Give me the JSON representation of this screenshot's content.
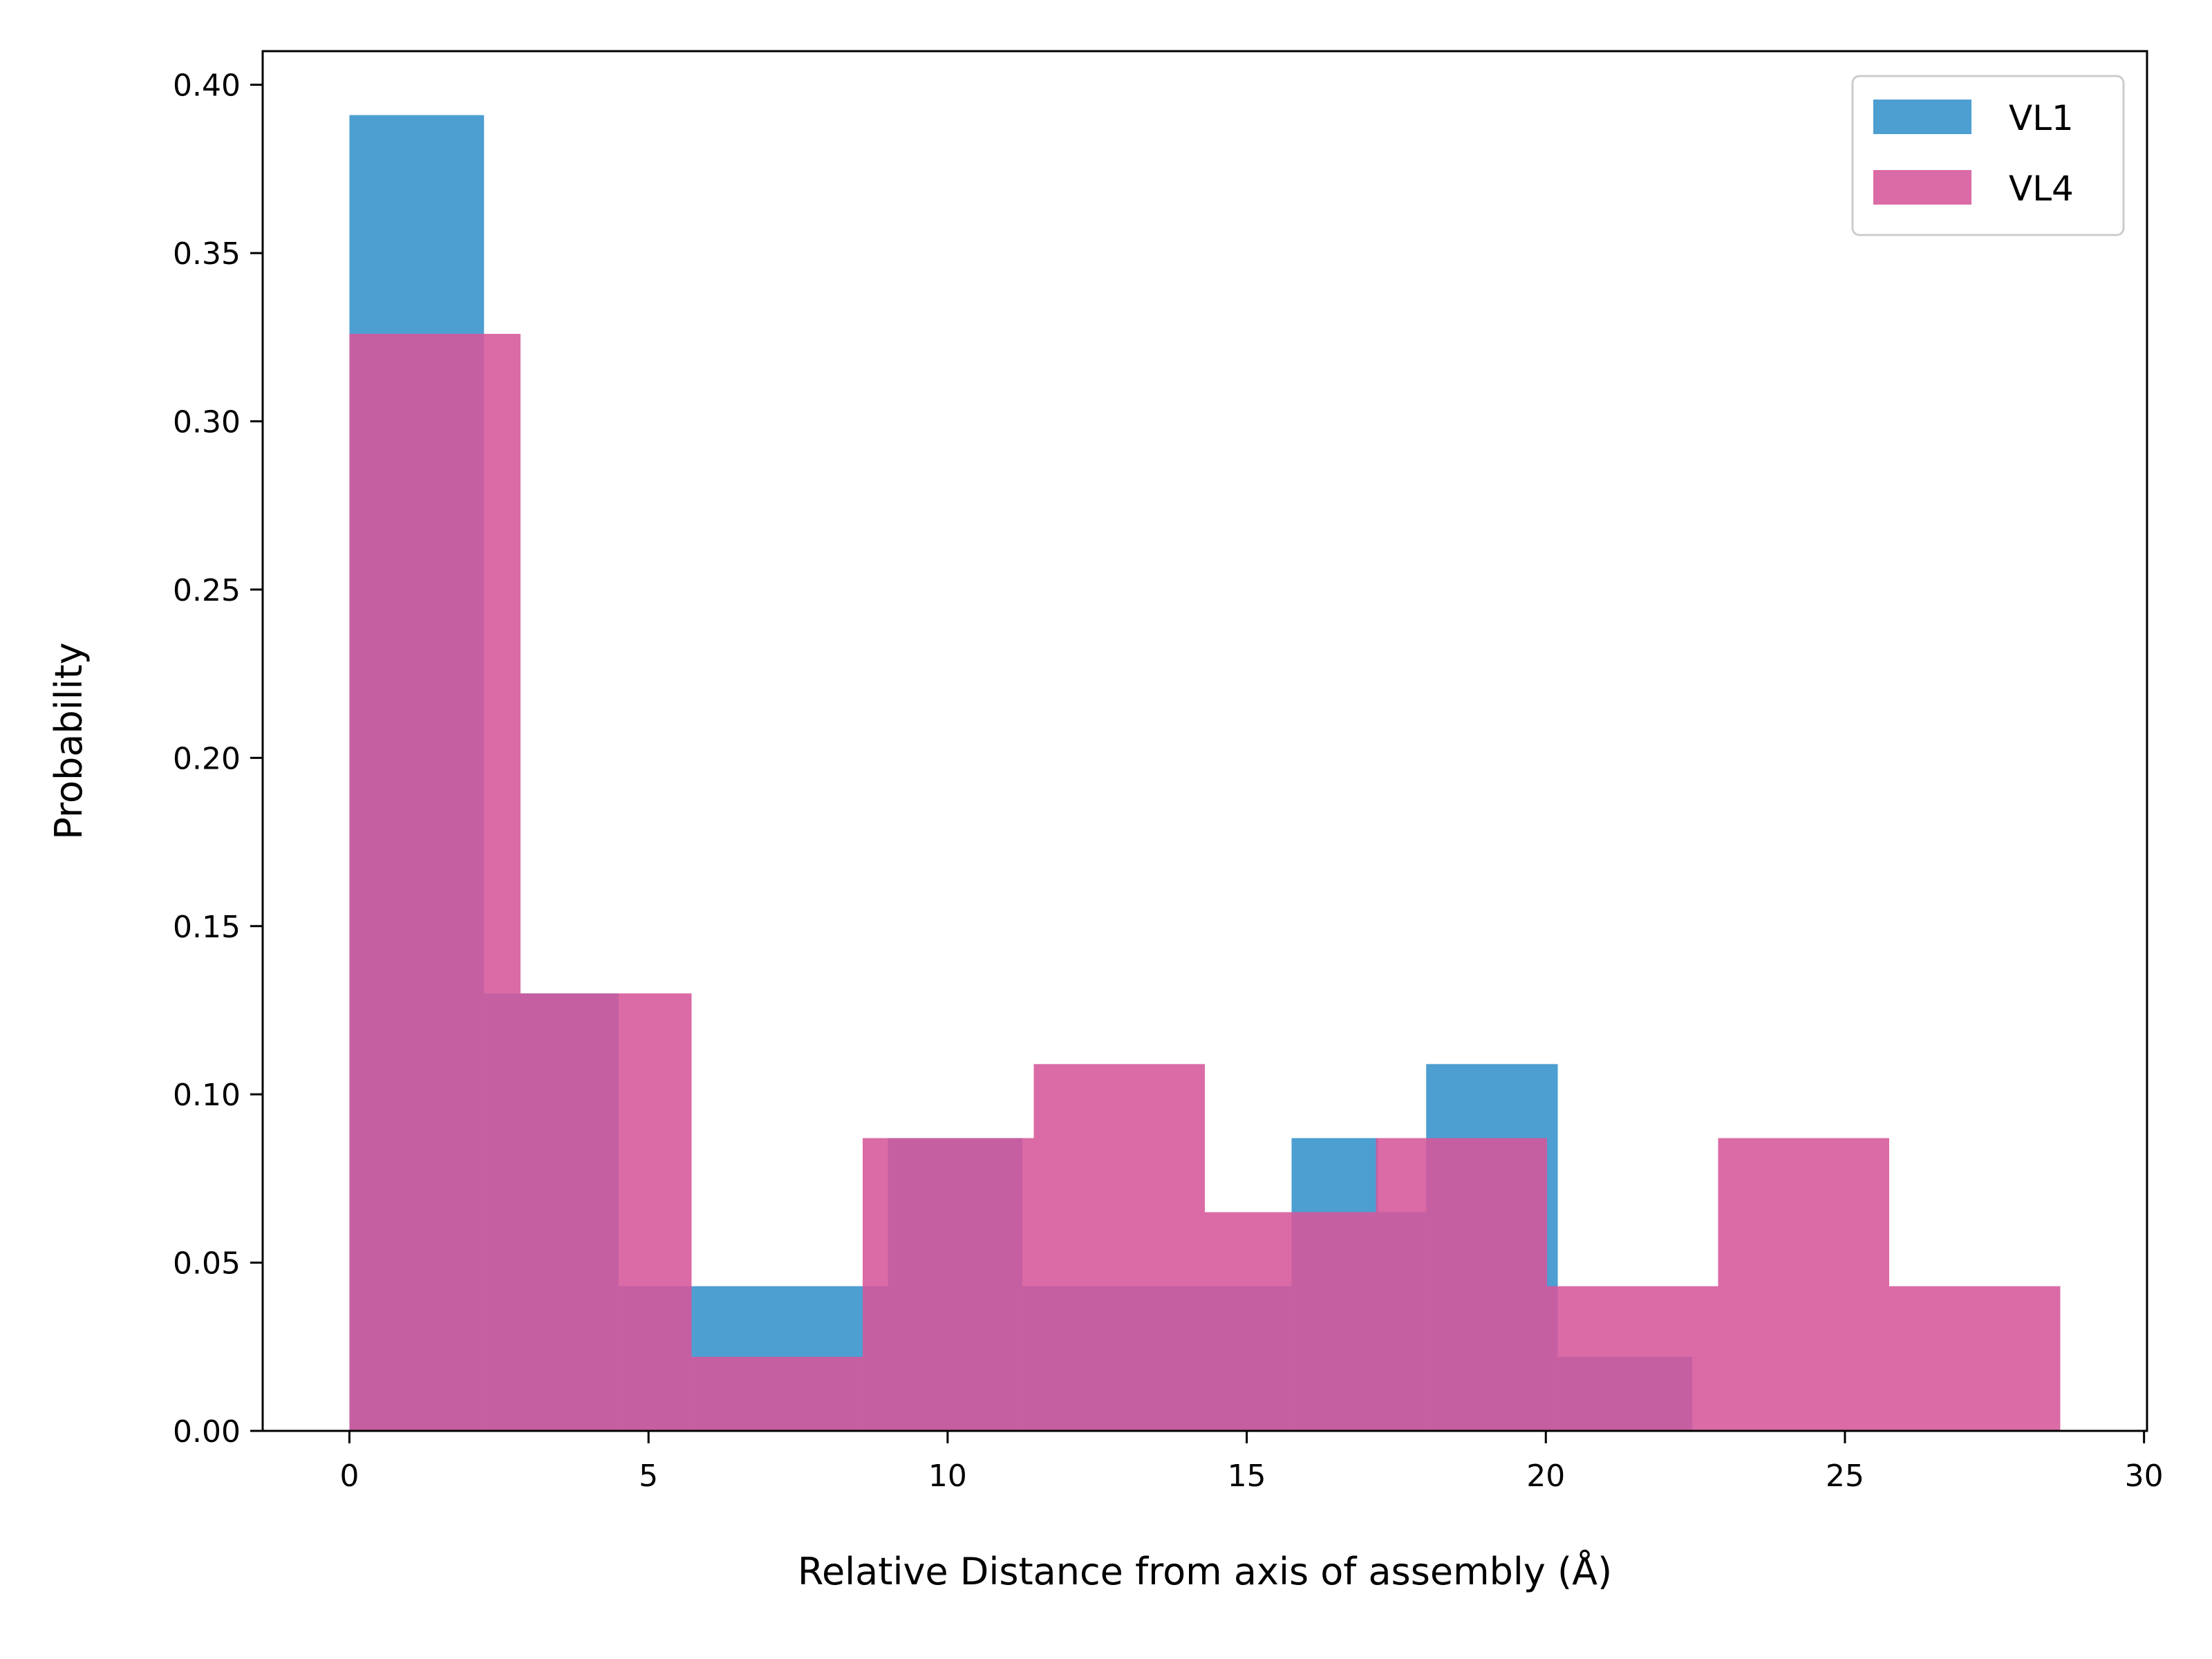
{
  "chart_data": {
    "type": "histogram",
    "xlabel": "Relative Distance from axis of assembly (Å)",
    "ylabel": "Probability",
    "xlim": [
      -1.45,
      30.05
    ],
    "ylim": [
      0,
      0.41
    ],
    "xticks": [
      0,
      5,
      10,
      15,
      20,
      25,
      30
    ],
    "yticks": [
      0.0,
      0.05,
      0.1,
      0.15,
      0.2,
      0.25,
      0.3,
      0.35,
      0.4
    ],
    "xtick_labels": [
      "0",
      "5",
      "10",
      "15",
      "20",
      "25",
      "30"
    ],
    "ytick_labels": [
      "0.00",
      "0.05",
      "0.10",
      "0.15",
      "0.20",
      "0.25",
      "0.30",
      "0.35",
      "0.40"
    ],
    "grid": false,
    "legend_position": "top-right",
    "series": [
      {
        "name": "VL1",
        "color": "#3a93cc",
        "opacity": 0.9,
        "bins": [
          {
            "x0": 0.0,
            "x1": 2.25,
            "value": 0.391
          },
          {
            "x0": 2.25,
            "x1": 4.5,
            "value": 0.13
          },
          {
            "x0": 4.5,
            "x1": 5.75,
            "value": 0.043
          },
          {
            "x0": 5.75,
            "x1": 8.6,
            "value": 0.043
          },
          {
            "x0": 8.6,
            "x1": 9.0,
            "value": 0.043
          },
          {
            "x0": 9.0,
            "x1": 11.25,
            "value": 0.087
          },
          {
            "x0": 11.25,
            "x1": 15.75,
            "value": 0.043
          },
          {
            "x0": 15.75,
            "x1": 17.2,
            "value": 0.087
          },
          {
            "x0": 17.2,
            "x1": 18.0,
            "value": 0.065
          },
          {
            "x0": 18.0,
            "x1": 20.2,
            "value": 0.109
          },
          {
            "x0": 20.2,
            "x1": 22.45,
            "value": 0.022
          }
        ]
      },
      {
        "name": "VL4",
        "color": "#d6579a",
        "opacity": 0.88,
        "bins": [
          {
            "x0": 0.0,
            "x1": 2.86,
            "value": 0.326
          },
          {
            "x0": 2.86,
            "x1": 5.72,
            "value": 0.13
          },
          {
            "x0": 5.72,
            "x1": 8.58,
            "value": 0.022
          },
          {
            "x0": 8.58,
            "x1": 11.44,
            "value": 0.087
          },
          {
            "x0": 11.44,
            "x1": 14.3,
            "value": 0.109
          },
          {
            "x0": 14.3,
            "x1": 17.16,
            "value": 0.065
          },
          {
            "x0": 17.16,
            "x1": 20.02,
            "value": 0.087
          },
          {
            "x0": 20.02,
            "x1": 22.88,
            "value": 0.043
          },
          {
            "x0": 22.88,
            "x1": 25.74,
            "value": 0.087
          },
          {
            "x0": 25.74,
            "x1": 28.6,
            "value": 0.043
          }
        ]
      }
    ]
  }
}
